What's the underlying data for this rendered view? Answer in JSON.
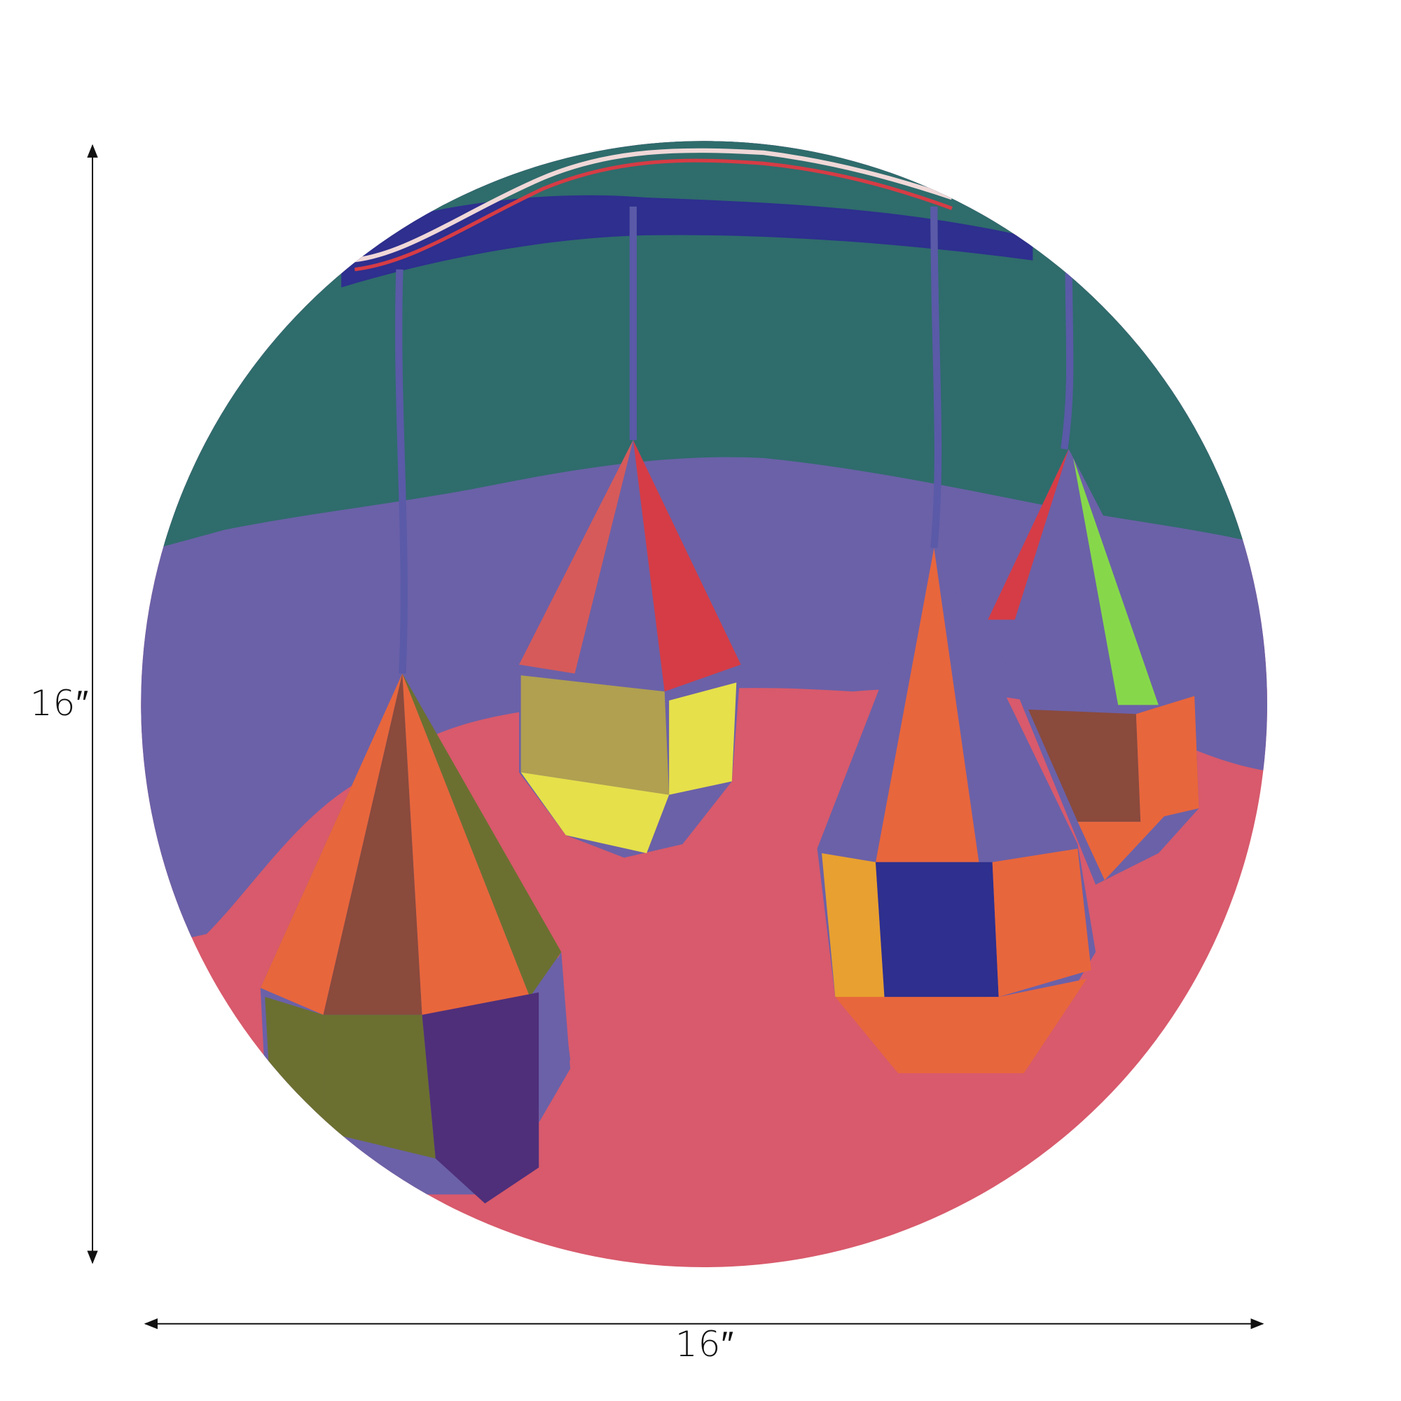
{
  "product": {
    "height_label": "16″",
    "width_label": "16″"
  },
  "colors": {
    "teal": "#2f6c6c",
    "navy": "#2e2f8e",
    "purple": "#6b61a8",
    "pink": "#d85a6c",
    "orange": "#e8663c",
    "red": "#d63c45",
    "yellow": "#e6e04a",
    "olive": "#6b7030",
    "brown": "#8a4a3c",
    "green": "#86d84a",
    "dark_purple": "#4f2f7a"
  }
}
